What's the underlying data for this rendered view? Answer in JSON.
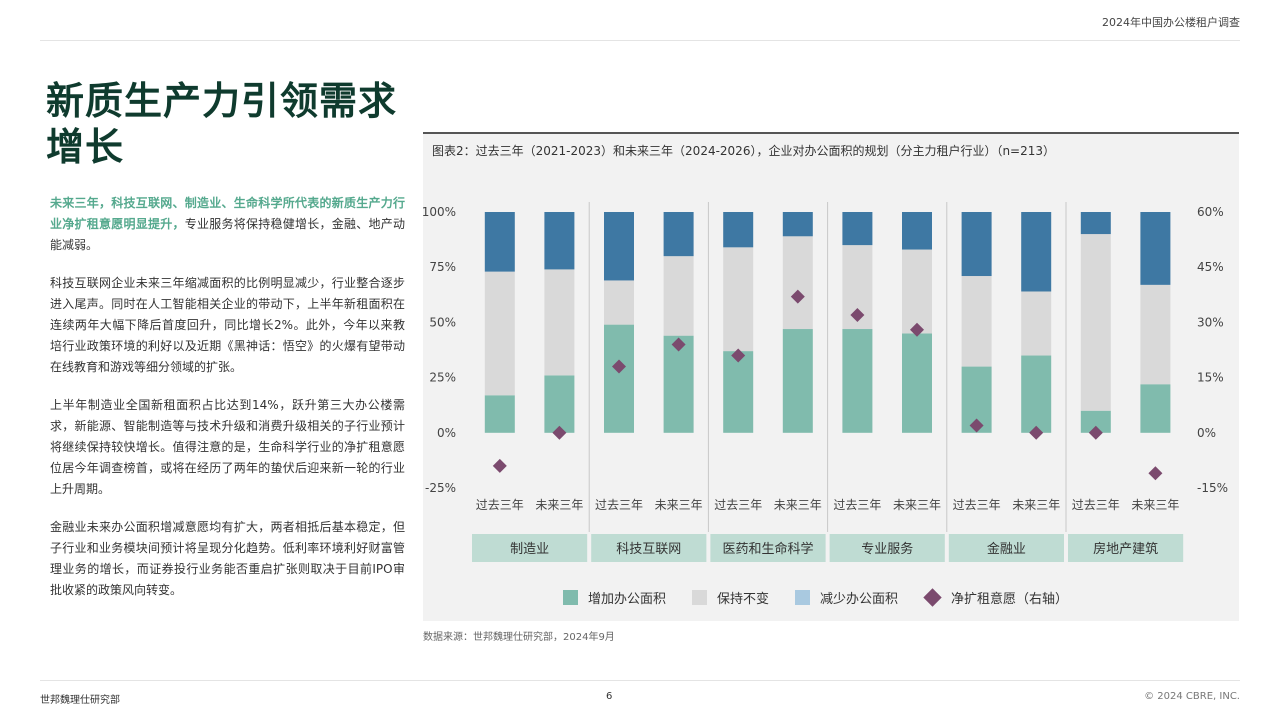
{
  "header": {
    "report_name": "2024年中国办公楼租户调查"
  },
  "title": "新质生产力引领需求增长",
  "paragraphs": {
    "p1_lead": "未来三年，科技互联网、制造业、生命科学所代表的新质生产力行业净扩租意愿明显提升，",
    "p1_rest": "专业服务将保持稳健增长，金融、地产动能减弱。",
    "p2": "科技互联网企业未来三年缩减面积的比例明显减少，行业整合逐步进入尾声。同时在人工智能相关企业的带动下，上半年新租面积在连续两年大幅下降后首度回升，同比增长2%。此外，今年以来教培行业政策环境的利好以及近期《黑神话：悟空》的火爆有望带动在线教育和游戏等细分领域的扩张。",
    "p3": "上半年制造业全国新租面积占比达到14%，跃升第三大办公楼需求，新能源、智能制造等与技术升级和消费升级相关的子行业预计将继续保持较快增长。值得注意的是，生命科学行业的净扩租意愿位居今年调查榜首，或将在经历了两年的蛰伏后迎来新一轮的行业上升周期。",
    "p4": "金融业未来办公面积增减意愿均有扩大，两者相抵后基本稳定，但子行业和业务模块间预计将呈现分化趋势。低利率环境利好财富管理业务的增长，而证券投行业务能否重启扩张则取决于目前IPO审批收紧的政策风向转变。"
  },
  "chart_data": {
    "type": "bar",
    "stacked": true,
    "title": "图表2：过去三年（2021-2023）和未来三年（2024-2026），企业对办公面积的规划（分主力租户行业）（n=213）",
    "categories": [
      "过去三年",
      "未来三年",
      "过去三年",
      "未来三年",
      "过去三年",
      "未来三年",
      "过去三年",
      "未来三年",
      "过去三年",
      "未来三年",
      "过去三年",
      "未来三年"
    ],
    "groups": [
      "制造业",
      "科技互联网",
      "医药和生命科学",
      "专业服务",
      "金融业",
      "房地产建筑"
    ],
    "series": [
      {
        "name": "增加办公面积",
        "color": "#80bbad",
        "values": [
          17,
          26,
          49,
          44,
          37,
          47,
          47,
          45,
          30,
          35,
          10,
          22
        ]
      },
      {
        "name": "保持不变",
        "color": "#d9d9d9",
        "values": [
          56,
          48,
          20,
          36,
          47,
          42,
          38,
          38,
          41,
          29,
          80,
          45
        ]
      },
      {
        "name": "减少办公面积",
        "color": "#3e78a3",
        "values": [
          27,
          26,
          31,
          20,
          16,
          11,
          15,
          17,
          29,
          36,
          10,
          33
        ]
      }
    ],
    "net_expansion": {
      "name": "净扩租意愿（右轴）",
      "color": "#7b4a6e",
      "values": [
        -9,
        0,
        18,
        24,
        21,
        37,
        32,
        28,
        2,
        0,
        0,
        -11
      ]
    },
    "y_left": {
      "ticks": [
        "100%",
        "75%",
        "50%",
        "25%",
        "0%",
        "-25%"
      ],
      "range": [
        -25,
        100
      ]
    },
    "y_right": {
      "ticks": [
        "60%",
        "45%",
        "30%",
        "15%",
        "0%",
        "-15%"
      ],
      "range": [
        -15,
        60
      ]
    },
    "legend_position": "bottom",
    "source": "数据来源：世邦魏理仕研究部，2024年9月"
  },
  "footer": {
    "left": "世邦魏理仕研究部",
    "page": "6",
    "right": "© 2024 CBRE, INC."
  },
  "colors": {
    "title": "#0f3b2e",
    "lead": "#55a98e",
    "group_band": "#bfdcd3"
  }
}
